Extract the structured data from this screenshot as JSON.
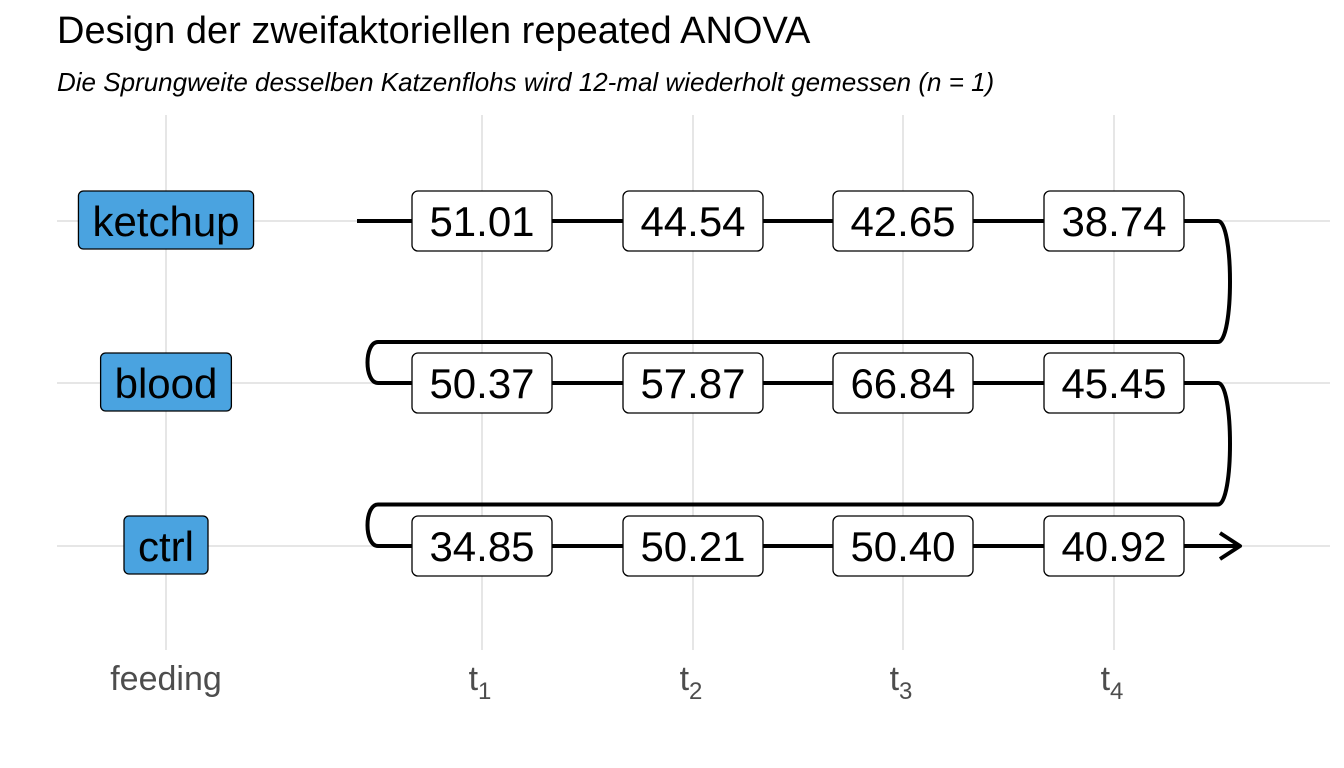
{
  "title": "Design der zweifaktoriellen repeated ANOVA",
  "subtitle": "Die Sprungweite desselben Katzenflohs wird 12-mal wiederholt gemessen (n = 1)",
  "x_axis": {
    "factor_label": "feeding",
    "time_labels": [
      {
        "base": "t",
        "sub": "1"
      },
      {
        "base": "t",
        "sub": "2"
      },
      {
        "base": "t",
        "sub": "3"
      },
      {
        "base": "t",
        "sub": "4"
      }
    ]
  },
  "colors": {
    "group_fill": "#4aa3e0",
    "cell_fill": "#ffffff",
    "path": "#000000",
    "grid": "#e6e6e6",
    "axis_text": "#4d4d4d"
  },
  "chart_data": {
    "type": "table",
    "rows": [
      {
        "group": "ketchup",
        "values": [
          "51.01",
          "44.54",
          "42.65",
          "38.74"
        ]
      },
      {
        "group": "blood",
        "values": [
          "50.37",
          "57.87",
          "66.84",
          "45.45"
        ]
      },
      {
        "group": "ctrl",
        "values": [
          "34.85",
          "50.21",
          "50.40",
          "40.92"
        ]
      }
    ],
    "path": "serpentine",
    "end_marker": "arrow"
  }
}
